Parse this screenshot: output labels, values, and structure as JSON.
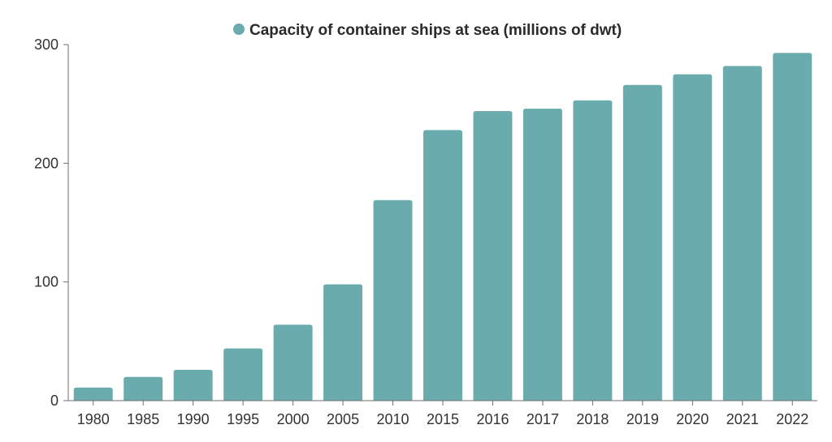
{
  "chart_data": {
    "type": "bar",
    "title": "",
    "xlabel": "",
    "ylabel": "",
    "legend": [
      {
        "label": "Capacity of container ships at sea (millions of dwt)",
        "color": "#6aacad"
      }
    ],
    "categories": [
      "1980",
      "1985",
      "1990",
      "1995",
      "2000",
      "2005",
      "2010",
      "2015",
      "2016",
      "2017",
      "2018",
      "2019",
      "2020",
      "2021",
      "2022"
    ],
    "series": [
      {
        "name": "Capacity of container ships at sea (millions of dwt)",
        "color": "#6aacad",
        "values": [
          11,
          20,
          26,
          44,
          64,
          98,
          169,
          228,
          244,
          246,
          253,
          266,
          275,
          282,
          293
        ]
      }
    ],
    "ylim": [
      0,
      300
    ],
    "yticks": [
      0,
      100,
      200,
      300
    ],
    "grid": false,
    "legend_position": "top-center"
  }
}
